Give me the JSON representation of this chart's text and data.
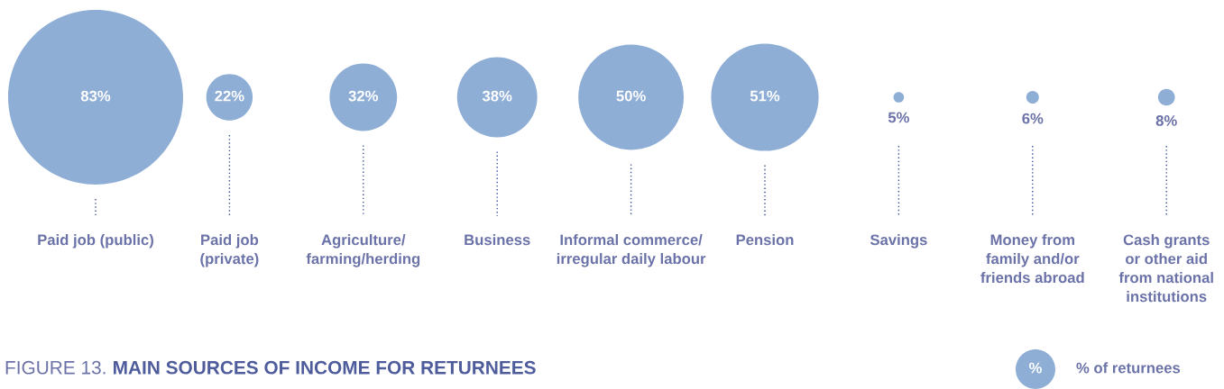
{
  "chart_data": {
    "type": "other",
    "title": "FIGURE 13.",
    "subtitle": "MAIN SOURCES OF INCOME FOR RETURNEES",
    "categories": [
      "Paid job (public)",
      "Paid job\n(private)",
      "Agriculture/\nfarming/herding",
      "Business",
      "Informal commerce/\nirregular daily labour",
      "Pension",
      "Savings",
      "Money from\nfamily and/or\nfriends abroad",
      "Cash grants\nor other aid\nfrom national\ninstitutions"
    ],
    "series": [
      {
        "color": "#8faed6",
        "values": [
          83,
          22,
          32,
          38,
          50,
          51,
          5,
          6,
          8
        ],
        "value_labels": [
          "83%",
          "22%",
          "32%",
          "38%",
          "50%",
          "51%",
          "5%",
          "6%",
          "8%"
        ]
      }
    ],
    "annotations": [
      "%",
      "% of returnees"
    ]
  }
}
